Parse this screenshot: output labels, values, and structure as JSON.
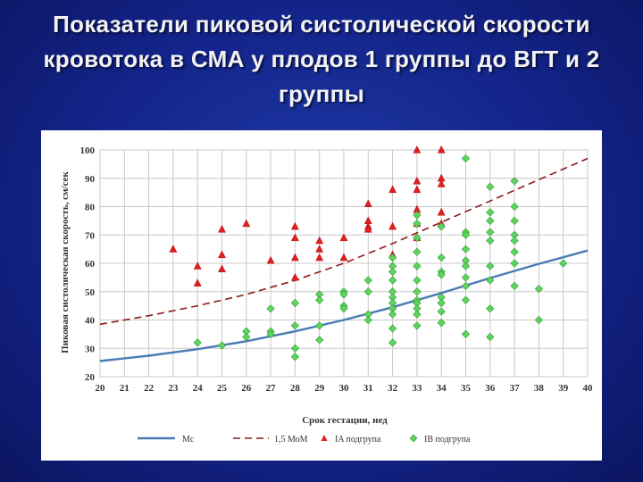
{
  "title": "Показатели пиковой систолической скорости кровотока в СМА у плодов 1 группы до ВГТ и 2 группы",
  "colors": {
    "background": "#13248a",
    "median": "#4a7bb5",
    "mom": "#8b1a1a",
    "group_ia": "#e02020",
    "group_ib": "#5fd35f"
  },
  "chart_data": {
    "type": "scatter",
    "xlabel": "Срок гестации, нед",
    "ylabel": "Пиковая систолическая скорость, см/сек",
    "xlim": [
      20,
      40
    ],
    "ylim": [
      20,
      100
    ],
    "x_ticks": [
      "20",
      "21",
      "22",
      "23",
      "24",
      "25",
      "26",
      "27",
      "28",
      "29",
      "30",
      "31",
      "32",
      "33",
      "34",
      "35",
      "36",
      "37",
      "38",
      "39",
      "40"
    ],
    "y_ticks": [
      "20",
      "30",
      "40",
      "50",
      "60",
      "70",
      "80",
      "90",
      "100"
    ],
    "grid": true,
    "legend_position": "bottom",
    "lines": [
      {
        "name": "Мс",
        "style": "solid",
        "color": "#4a7bb5",
        "x": [
          20,
          22,
          24,
          26,
          28,
          30,
          32,
          34,
          36,
          38,
          40
        ],
        "y": [
          25.5,
          27.4,
          29.7,
          32.5,
          36,
          40,
          44.5,
          49.5,
          54.8,
          59.8,
          64.5
        ]
      },
      {
        "name": "1,5 МоМ",
        "style": "dashed",
        "color": "#8b1a1a",
        "x": [
          20,
          22,
          24,
          26,
          28,
          30,
          32,
          34,
          36,
          38,
          40
        ],
        "y": [
          38.5,
          41.5,
          45,
          49,
          54,
          60,
          67,
          74.5,
          82,
          89.5,
          97
        ]
      }
    ],
    "series": [
      {
        "name": "IA подгрупа",
        "marker": "triangle",
        "color": "#e02020",
        "points": [
          [
            23,
            65
          ],
          [
            24,
            59
          ],
          [
            24,
            53
          ],
          [
            25,
            72
          ],
          [
            25,
            63
          ],
          [
            25,
            58
          ],
          [
            26,
            74
          ],
          [
            27,
            61
          ],
          [
            28,
            73
          ],
          [
            28,
            69
          ],
          [
            28,
            62
          ],
          [
            28,
            55
          ],
          [
            29,
            68
          ],
          [
            29,
            65
          ],
          [
            29,
            62
          ],
          [
            30,
            69
          ],
          [
            30,
            62
          ],
          [
            31,
            81
          ],
          [
            31,
            75
          ],
          [
            31,
            73
          ],
          [
            31,
            72
          ],
          [
            32,
            86
          ],
          [
            32,
            73
          ],
          [
            32,
            63
          ],
          [
            33,
            100
          ],
          [
            33,
            89
          ],
          [
            33,
            86
          ],
          [
            33,
            79
          ],
          [
            33,
            74
          ],
          [
            33,
            69
          ],
          [
            34,
            100
          ],
          [
            34,
            90
          ],
          [
            34,
            88
          ],
          [
            34,
            78
          ],
          [
            34,
            74
          ]
        ]
      },
      {
        "name": "IB подгрупа",
        "marker": "diamond",
        "color": "#5fd35f",
        "points": [
          [
            24,
            32
          ],
          [
            25,
            31
          ],
          [
            26,
            36
          ],
          [
            26,
            34
          ],
          [
            27,
            44
          ],
          [
            27,
            36
          ],
          [
            27,
            35
          ],
          [
            28,
            46
          ],
          [
            28,
            38
          ],
          [
            28,
            30
          ],
          [
            28,
            27
          ],
          [
            29,
            49
          ],
          [
            29,
            47
          ],
          [
            29,
            38
          ],
          [
            29,
            33
          ],
          [
            30,
            50
          ],
          [
            30,
            49
          ],
          [
            30,
            45
          ],
          [
            30,
            44
          ],
          [
            31,
            54
          ],
          [
            31,
            50
          ],
          [
            31,
            42
          ],
          [
            31,
            40
          ],
          [
            32,
            62
          ],
          [
            32,
            59
          ],
          [
            32,
            57
          ],
          [
            32,
            54
          ],
          [
            32,
            50
          ],
          [
            32,
            48
          ],
          [
            32,
            46
          ],
          [
            32,
            44
          ],
          [
            32,
            42
          ],
          [
            32,
            37
          ],
          [
            32,
            32
          ],
          [
            33,
            77
          ],
          [
            33,
            74
          ],
          [
            33,
            69
          ],
          [
            33,
            64
          ],
          [
            33,
            59
          ],
          [
            33,
            54
          ],
          [
            33,
            50
          ],
          [
            33,
            47
          ],
          [
            33,
            46
          ],
          [
            33,
            44
          ],
          [
            33,
            42
          ],
          [
            33,
            38
          ],
          [
            34,
            73
          ],
          [
            34,
            62
          ],
          [
            34,
            57
          ],
          [
            34,
            56
          ],
          [
            34,
            48
          ],
          [
            34,
            46
          ],
          [
            34,
            43
          ],
          [
            34,
            39
          ],
          [
            35,
            97
          ],
          [
            35,
            71
          ],
          [
            35,
            70
          ],
          [
            35,
            65
          ],
          [
            35,
            61
          ],
          [
            35,
            59
          ],
          [
            35,
            55
          ],
          [
            35,
            52
          ],
          [
            35,
            47
          ],
          [
            35,
            35
          ],
          [
            36,
            87
          ],
          [
            36,
            78
          ],
          [
            36,
            75
          ],
          [
            36,
            71
          ],
          [
            36,
            68
          ],
          [
            36,
            59
          ],
          [
            36,
            54
          ],
          [
            36,
            44
          ],
          [
            36,
            34
          ],
          [
            37,
            89
          ],
          [
            37,
            80
          ],
          [
            37,
            75
          ],
          [
            37,
            70
          ],
          [
            37,
            68
          ],
          [
            37,
            64
          ],
          [
            37,
            60
          ],
          [
            37,
            52
          ],
          [
            38,
            51
          ],
          [
            38,
            40
          ],
          [
            39,
            60
          ]
        ]
      }
    ]
  }
}
